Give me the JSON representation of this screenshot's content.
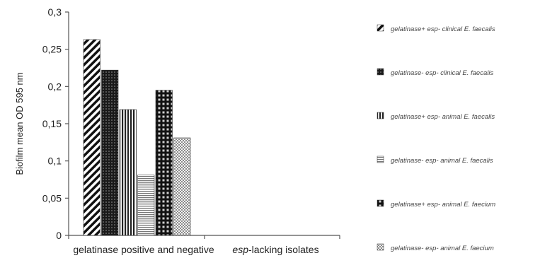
{
  "chart_data": {
    "type": "bar",
    "ylabel": "Biofilm mean OD 595 nm",
    "ylim": [
      0,
      0.3
    ],
    "yticks": [
      "0",
      "0,05",
      "0,1",
      "0,15",
      "0,2",
      "0,25",
      "0,3"
    ],
    "categories": [
      {
        "label_parts": [
          {
            "text": "gelatinase positive and negative",
            "italic": false
          }
        ]
      },
      {
        "label_parts": [
          {
            "text": "esp",
            "italic": true
          },
          {
            "text": "-lacking isolates",
            "italic": false
          }
        ]
      }
    ],
    "series": [
      {
        "name": "gelatinase+ esp- clinical E. faecalis",
        "values": [
          0.263,
          null
        ],
        "pattern": "diag-stripes"
      },
      {
        "name": "gelatinase- esp- clinical E. faecalis",
        "values": [
          0.222,
          null
        ],
        "pattern": "dark-dots"
      },
      {
        "name": "gelatinase+ esp- animal E. faecalis",
        "values": [
          0.169,
          null
        ],
        "pattern": "vertical-stripes"
      },
      {
        "name": "gelatinase- esp- animal E. faecalis",
        "values": [
          0.081,
          null
        ],
        "pattern": "horizontal-stripes"
      },
      {
        "name": "gelatinase+ esp- animal E. faecium",
        "values": [
          0.195,
          null
        ],
        "pattern": "dark-grid"
      },
      {
        "name": "gelatinase- esp- animal E. faecium",
        "values": [
          0.131,
          null
        ],
        "pattern": "light-check"
      }
    ],
    "grid": false,
    "legend_position": "right"
  }
}
